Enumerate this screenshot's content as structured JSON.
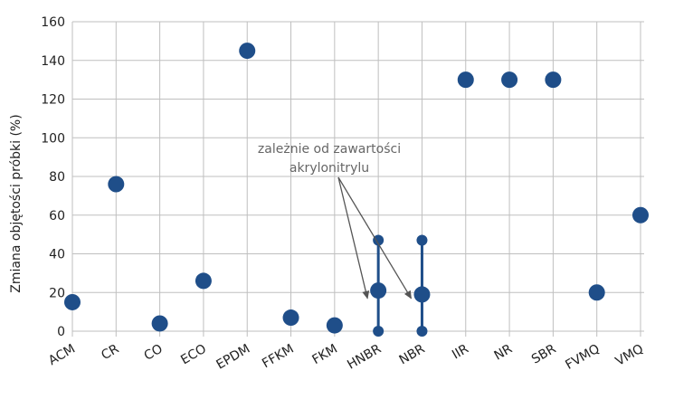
{
  "chart_data": {
    "type": "scatter",
    "ylabel": "Zmiana objętości próbki (%)",
    "ylim": [
      0,
      160
    ],
    "yticks": [
      0,
      20,
      40,
      60,
      80,
      100,
      120,
      140,
      160
    ],
    "grid": true,
    "categories": [
      "ACM",
      "CR",
      "CO",
      "ECO",
      "EPDM",
      "FFKM",
      "FKM",
      "HNBR",
      "NBR",
      "IIR",
      "NR",
      "SBR",
      "FVMQ",
      "VMQ"
    ],
    "values": [
      15,
      76,
      4,
      26,
      145,
      7,
      3,
      21,
      19,
      130,
      130,
      130,
      20,
      60
    ],
    "ranges": [
      {
        "category": "HNBR",
        "min": 0,
        "max": 47
      },
      {
        "category": "NBR",
        "min": 0,
        "max": 47
      }
    ],
    "annotation": {
      "lines": [
        "zależnie od zawartości",
        "akrylonitrylu"
      ],
      "targets": [
        "HNBR",
        "NBR"
      ]
    },
    "colors": {
      "marker": "#1f4e89",
      "grid": "#bfbfbf",
      "annotation": "#666666",
      "arrow": "#555555"
    }
  }
}
